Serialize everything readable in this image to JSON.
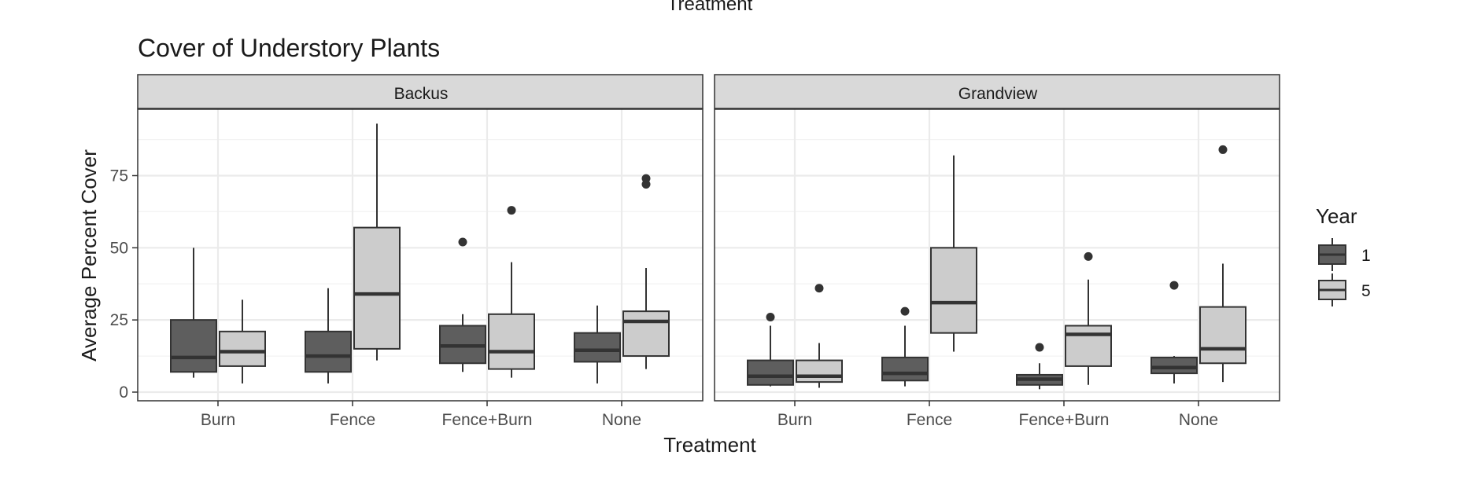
{
  "chart_data": {
    "type": "boxplot",
    "title": "Cover of Understory Plants",
    "top_cropped_text": "Treatment",
    "xlabel": "Treatment",
    "ylabel": "Average Percent Cover",
    "ylim": [
      -3,
      98
    ],
    "yticks": [
      0,
      25,
      50,
      75
    ],
    "categories": [
      "Burn",
      "Fence",
      "Fence+Burn",
      "None"
    ],
    "grid": true,
    "legend": {
      "title": "Year",
      "position": "right",
      "entries": [
        {
          "label": "1",
          "color": "#5e5e5e"
        },
        {
          "label": "5",
          "color": "#cccccc"
        }
      ]
    },
    "facets": [
      {
        "name": "Backus",
        "groups": [
          {
            "category": "Burn",
            "year": "1",
            "min": 5,
            "q1": 7,
            "median": 12,
            "q3": 25,
            "max": 50,
            "outliers": []
          },
          {
            "category": "Burn",
            "year": "5",
            "min": 3,
            "q1": 9,
            "median": 14,
            "q3": 21,
            "max": 32,
            "outliers": []
          },
          {
            "category": "Fence",
            "year": "1",
            "min": 3,
            "q1": 7,
            "median": 12.5,
            "q3": 21,
            "max": 36,
            "outliers": []
          },
          {
            "category": "Fence",
            "year": "5",
            "min": 11,
            "q1": 15,
            "median": 34,
            "q3": 57,
            "max": 93,
            "outliers": []
          },
          {
            "category": "Fence+Burn",
            "year": "1",
            "min": 7,
            "q1": 10,
            "median": 16,
            "q3": 23,
            "max": 27,
            "outliers": [
              52
            ]
          },
          {
            "category": "Fence+Burn",
            "year": "5",
            "min": 5,
            "q1": 8,
            "median": 14,
            "q3": 27,
            "max": 45,
            "outliers": [
              63
            ]
          },
          {
            "category": "None",
            "year": "1",
            "min": 3,
            "q1": 10.5,
            "median": 14.5,
            "q3": 20.5,
            "max": 30,
            "outliers": []
          },
          {
            "category": "None",
            "year": "5",
            "min": 8,
            "q1": 12.5,
            "median": 24.5,
            "q3": 28,
            "max": 43,
            "outliers": [
              72,
              74
            ]
          }
        ]
      },
      {
        "name": "Grandview",
        "groups": [
          {
            "category": "Burn",
            "year": "1",
            "min": 2,
            "q1": 2.5,
            "median": 5.5,
            "q3": 11,
            "max": 23,
            "outliers": [
              26
            ]
          },
          {
            "category": "Burn",
            "year": "5",
            "min": 1.5,
            "q1": 3.5,
            "median": 5.5,
            "q3": 11,
            "max": 17,
            "outliers": [
              36
            ]
          },
          {
            "category": "Fence",
            "year": "1",
            "min": 2,
            "q1": 4,
            "median": 6.5,
            "q3": 12,
            "max": 23,
            "outliers": [
              28
            ]
          },
          {
            "category": "Fence",
            "year": "5",
            "min": 14,
            "q1": 20.5,
            "median": 31,
            "q3": 50,
            "max": 82,
            "outliers": []
          },
          {
            "category": "Fence+Burn",
            "year": "1",
            "min": 1,
            "q1": 2.5,
            "median": 4.5,
            "q3": 6,
            "max": 10,
            "outliers": [
              15.5
            ]
          },
          {
            "category": "Fence+Burn",
            "year": "5",
            "min": 2.5,
            "q1": 9,
            "median": 20,
            "q3": 23,
            "max": 39,
            "outliers": [
              47
            ]
          },
          {
            "category": "None",
            "year": "1",
            "min": 3,
            "q1": 6.5,
            "median": 8.5,
            "q3": 12,
            "max": 12.5,
            "outliers": [
              37
            ]
          },
          {
            "category": "None",
            "year": "5",
            "min": 3.5,
            "q1": 10,
            "median": 15,
            "q3": 29.5,
            "max": 44.5,
            "outliers": [
              84
            ]
          }
        ]
      }
    ],
    "colors": {
      "year1_fill": "#5e5e5e",
      "year5_fill": "#cccccc",
      "outline": "#333333",
      "strip_fill": "#d9d9d9",
      "grid_major": "#ebebeb",
      "grid_minor": "#f3f3f3",
      "panel_border": "#333333",
      "text": "#1a1a1a",
      "tick_text": "#4d4d4d"
    }
  }
}
